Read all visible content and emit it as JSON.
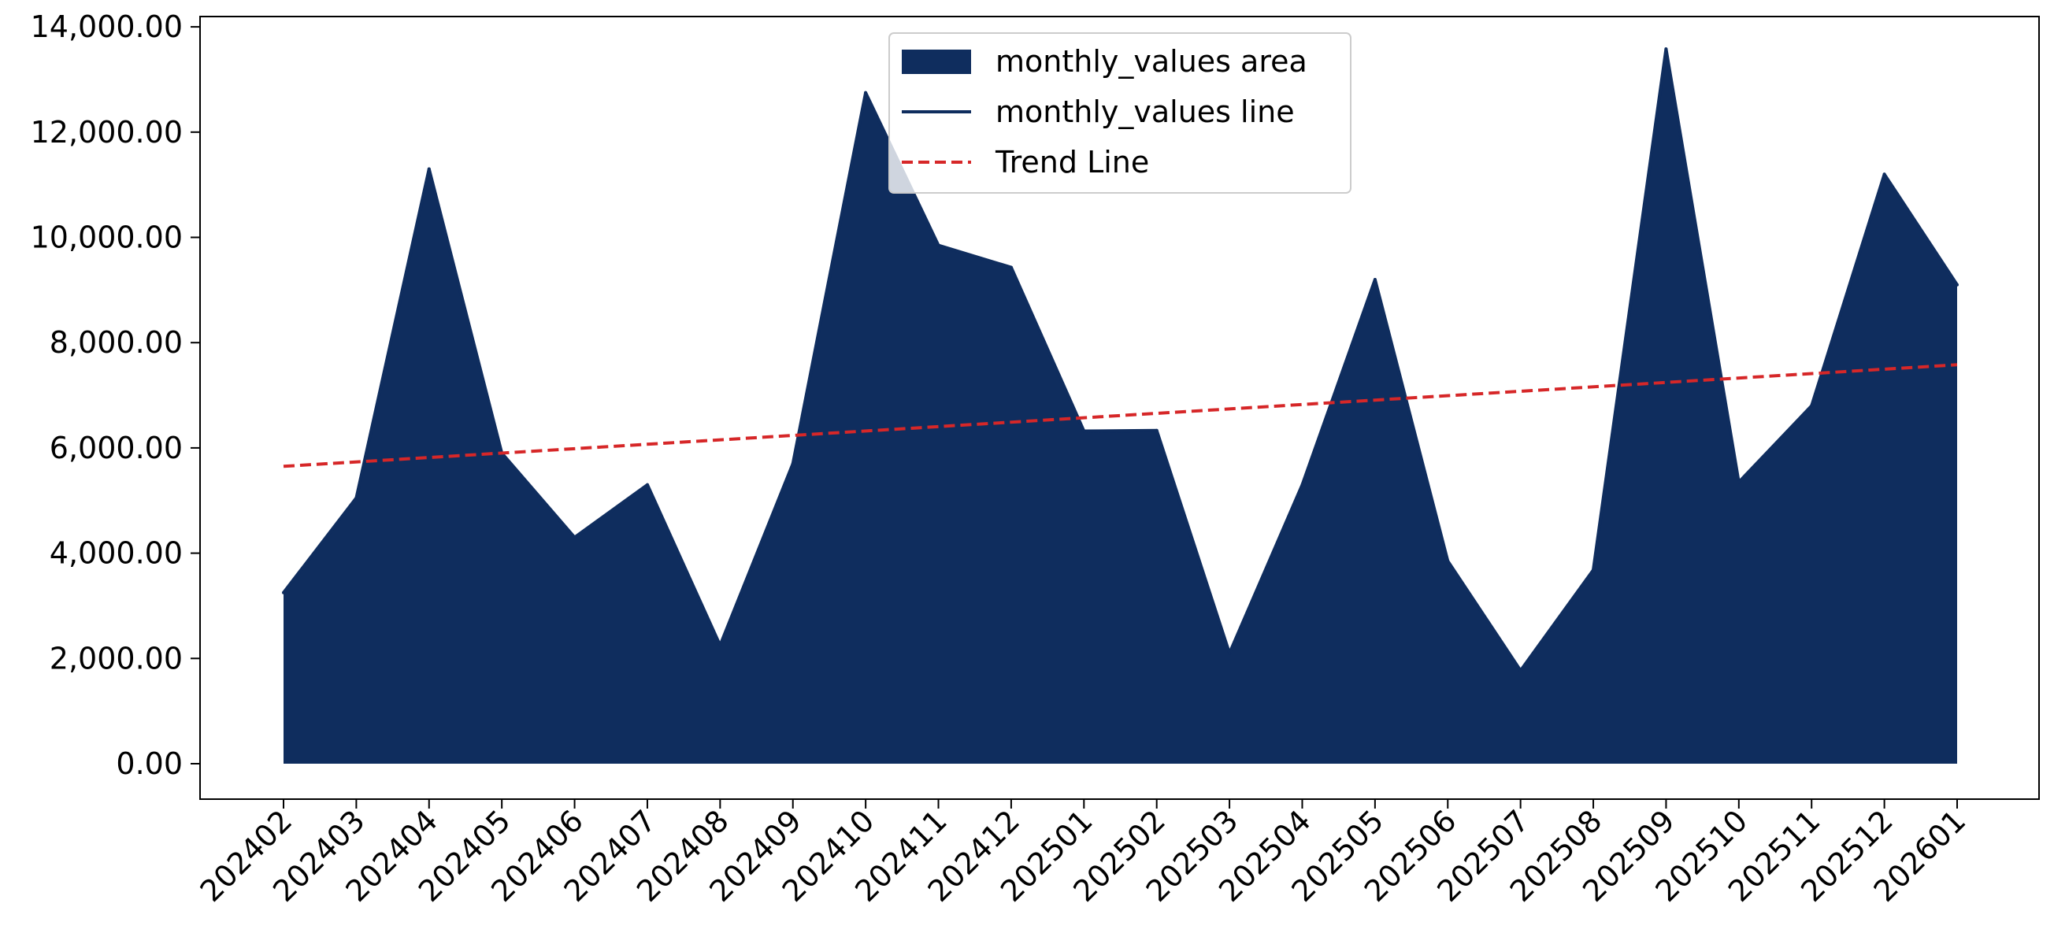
{
  "chart_data": {
    "type": "area",
    "title": "",
    "xlabel": "",
    "ylabel": "",
    "categories": [
      "202402",
      "202403",
      "202404",
      "202405",
      "202406",
      "202407",
      "202408",
      "202409",
      "202410",
      "202411",
      "202412",
      "202501",
      "202502",
      "202503",
      "202504",
      "202505",
      "202506",
      "202507",
      "202508",
      "202509",
      "202510",
      "202511",
      "202512",
      "202601"
    ],
    "series": [
      {
        "name": "monthly_values area",
        "kind": "area",
        "color": "#0f2d5e",
        "values": [
          3250,
          5050,
          11300,
          5900,
          4300,
          5300,
          2250,
          5700,
          12750,
          9850,
          9430,
          6320,
          6330,
          2100,
          5300,
          9200,
          3850,
          1770,
          3680,
          13580,
          5350,
          6800,
          11200,
          9100
        ]
      },
      {
        "name": "monthly_values line",
        "kind": "line",
        "color": "#0f2d5e",
        "values": [
          3250,
          5050,
          11300,
          5900,
          4300,
          5300,
          2250,
          5700,
          12750,
          9850,
          9430,
          6320,
          6330,
          2100,
          5300,
          9200,
          3850,
          1770,
          3680,
          13580,
          5350,
          6800,
          11200,
          9100
        ]
      },
      {
        "name": "Trend Line",
        "kind": "trend",
        "color": "#d62728",
        "style": "dashed",
        "start": 5650,
        "end": 7580
      }
    ],
    "ylim": [
      -650,
      14250
    ],
    "yticks": [
      0,
      2000,
      4000,
      6000,
      8000,
      10000,
      12000,
      14000
    ],
    "ytick_labels": [
      "0.00",
      "2,000.00",
      "4,000.00",
      "6,000.00",
      "8,000.00",
      "10,000.00",
      "12,000.00",
      "14,000.00"
    ],
    "grid": false,
    "legend_position": "upper center",
    "legend": [
      {
        "label": "monthly_values area",
        "kind": "patch",
        "color": "#0f2d5e"
      },
      {
        "label": "monthly_values line",
        "kind": "line",
        "color": "#0f2d5e"
      },
      {
        "label": "Trend Line",
        "kind": "dashed",
        "color": "#d62728"
      }
    ]
  }
}
